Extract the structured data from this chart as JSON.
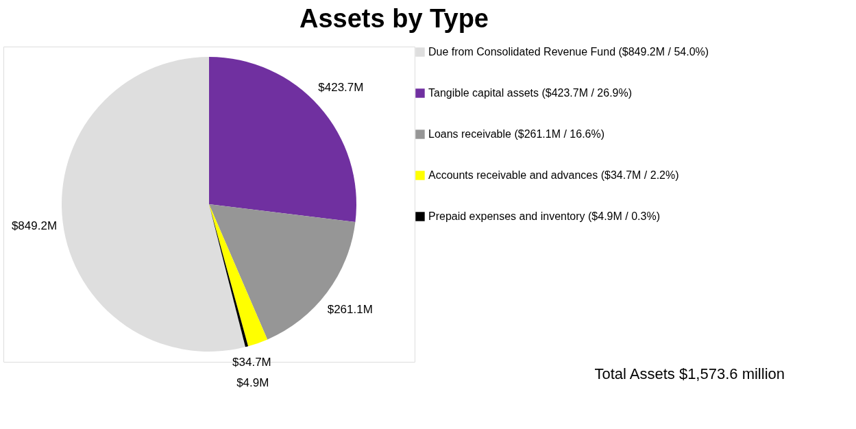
{
  "chart_data": {
    "type": "pie",
    "title": "Assets by Type",
    "categories": [
      "Due from Consolidated Revenue Fund ($849.2M / 54.0%)",
      "Tangible capital assets ($423.7M / 26.9%)",
      "Loans receivable ($261.1M / 16.6%)",
      "Accounts receivable and advances ($34.7M / 2.2%)",
      "Prepaid expenses and inventory ($4.9M / 0.3%)"
    ],
    "values": [
      849.2,
      423.7,
      261.1,
      34.7,
      4.9
    ],
    "colors": [
      "#dedede",
      "#7030a0",
      "#969696",
      "#ffff00",
      "#000000"
    ],
    "value_labels": [
      "$849.2M",
      "$423.7M",
      "$261.1M",
      "$34.7M",
      "$4.9M"
    ],
    "legend": "right",
    "annotations": [
      "Total Assets $1,573.6 million"
    ]
  }
}
